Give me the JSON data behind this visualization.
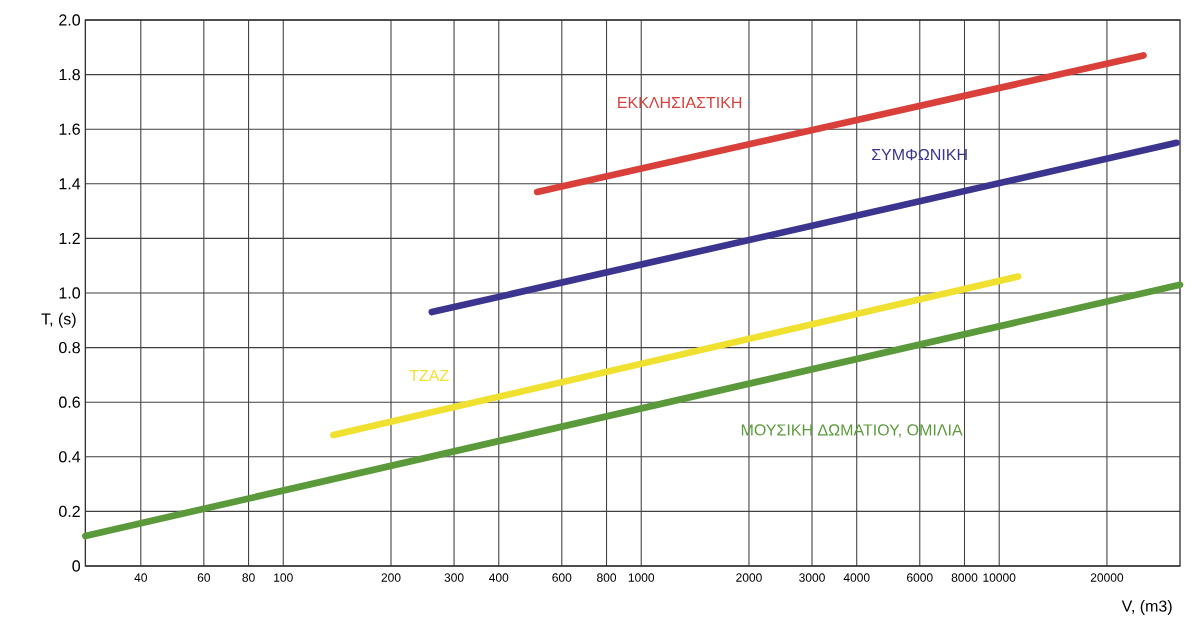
{
  "chart_data": {
    "type": "line",
    "xlabel": "V, (m3)",
    "ylabel": "T, (s)",
    "log": "x",
    "grid": true,
    "marker": "none",
    "line_style": "solid",
    "xlim": [
      28,
      32000
    ],
    "ylim": [
      0,
      2
    ],
    "xticks": [
      40,
      60,
      80,
      100,
      200,
      300,
      400,
      600,
      800,
      1000,
      2000,
      3000,
      4000,
      6000,
      8000,
      10000,
      20000
    ],
    "yticks": [
      0,
      0.2,
      0.4,
      0.6,
      0.8,
      {
        "value": 1,
        "label": "1.0"
      },
      1.2,
      1.4,
      1.6,
      1.8,
      {
        "value": 2,
        "label": "2.0"
      }
    ],
    "series": [
      {
        "name": "ΕΚΚΛΗΣΙΑΣΤΙΚΗ",
        "color": "#d9403a",
        "x": [
          512,
          25300
        ],
        "values": [
          1.37,
          1.87
        ]
      },
      {
        "name": "ΣΥΜΦΩΝΙΚΗ",
        "color": "#3b3590",
        "x": [
          260,
          31300
        ],
        "values": [
          0.93,
          1.55
        ]
      },
      {
        "name": "ΤΖΑΖ",
        "color": "#f0e030",
        "x": [
          138,
          11300
        ],
        "values": [
          0.48,
          1.06
        ]
      },
      {
        "name": "ΜΟΥΣΙΚΗ ΔΩΜΑΤΙΟΥ, ΟΜΙΛΙΑ",
        "color": "#5a9a3a",
        "x": [
          28,
          32000
        ],
        "values": [
          0.11,
          1.03
        ]
      }
    ]
  }
}
